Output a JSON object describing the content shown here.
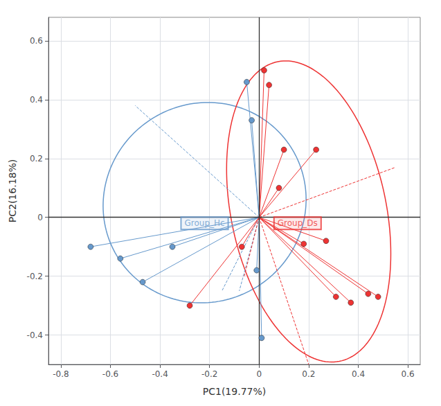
{
  "chart_data": {
    "type": "scatter",
    "xlabel": "PC1(19.77%)",
    "ylabel": "PC2(16.18%)",
    "xlim": [
      -0.85,
      0.65
    ],
    "ylim": [
      -0.5,
      0.68
    ],
    "xticks": [
      -0.8,
      -0.6,
      -0.4,
      -0.2,
      0.0,
      0.2,
      0.4,
      0.6
    ],
    "yticks": [
      -0.4,
      -0.2,
      0.0,
      0.2,
      0.4,
      0.6
    ],
    "grid": true,
    "series": [
      {
        "name": "Group_Hc",
        "color": "#6699CC",
        "x": [
          -0.68,
          -0.56,
          -0.47,
          -0.35,
          -0.05,
          -0.03,
          -0.01,
          0.01
        ],
        "values": [
          -0.1,
          -0.14,
          -0.22,
          -0.1,
          0.46,
          0.33,
          -0.18,
          -0.41
        ],
        "centroid": [
          0.0,
          0.0
        ],
        "ellipse": {
          "center": [
            -0.22,
            0.05
          ],
          "width": 0.82,
          "height": 0.68,
          "angle": 5
        },
        "dashed_lines": [
          [
            [
              0.0,
              0.0
            ],
            [
              -0.5,
              0.38
            ]
          ],
          [
            [
              0.0,
              0.0
            ],
            [
              -0.15,
              -0.25
            ]
          ],
          [
            [
              0.0,
              0.0
            ],
            [
              -0.08,
              -0.25
            ]
          ]
        ],
        "label_pos": [
          -0.22,
          -0.02
        ]
      },
      {
        "name": "Group_Ds",
        "color": "#EE3333",
        "x": [
          0.02,
          0.04,
          0.08,
          0.1,
          0.18,
          0.23,
          0.27,
          0.31,
          0.37,
          0.44,
          0.48,
          -0.07,
          -0.28
        ],
        "values": [
          0.5,
          0.45,
          0.1,
          0.23,
          -0.09,
          0.23,
          -0.08,
          -0.27,
          -0.29,
          -0.26,
          -0.27,
          -0.1,
          -0.3
        ],
        "centroid": [
          0.0,
          0.0
        ],
        "ellipse": {
          "center": [
            0.2,
            0.02
          ],
          "width": 0.62,
          "height": 1.05,
          "angle": 16
        },
        "dashed_lines": [
          [
            [
              0.0,
              0.0
            ],
            [
              0.55,
              0.17
            ]
          ],
          [
            [
              0.0,
              0.0
            ],
            [
              0.2,
              -0.5
            ]
          ],
          [
            [
              0.0,
              0.0
            ],
            [
              -0.06,
              -0.2
            ]
          ]
        ],
        "label_pos": [
          0.155,
          -0.02
        ]
      }
    ]
  }
}
